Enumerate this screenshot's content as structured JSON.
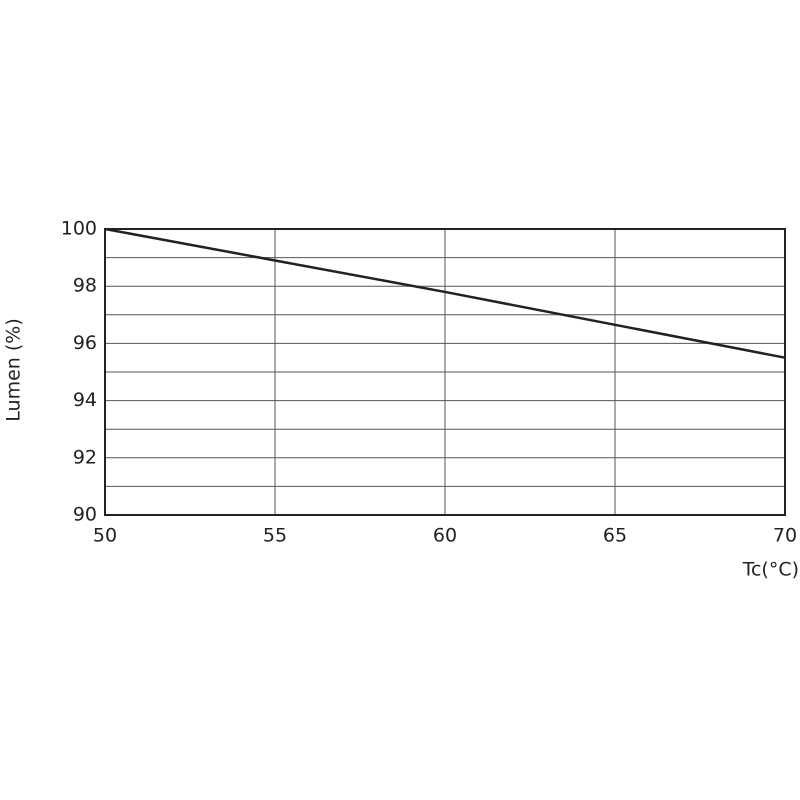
{
  "chart_data": {
    "type": "line",
    "x_label": "Tc(°C)",
    "y_label": "Lumen (%)",
    "x": [
      50,
      55,
      60,
      65,
      70
    ],
    "series": [
      {
        "color": "#222222",
        "values": [
          100,
          98.9,
          97.8,
          96.65,
          95.5
        ]
      }
    ],
    "xlim": [
      50,
      70
    ],
    "xticks": [
      50,
      55,
      60,
      65,
      70
    ],
    "ylim": [
      90,
      100
    ],
    "yticks": [
      90,
      92,
      94,
      96,
      98,
      100
    ],
    "yminorticks": [
      91,
      93,
      95,
      97,
      99
    ],
    "grid": true
  }
}
